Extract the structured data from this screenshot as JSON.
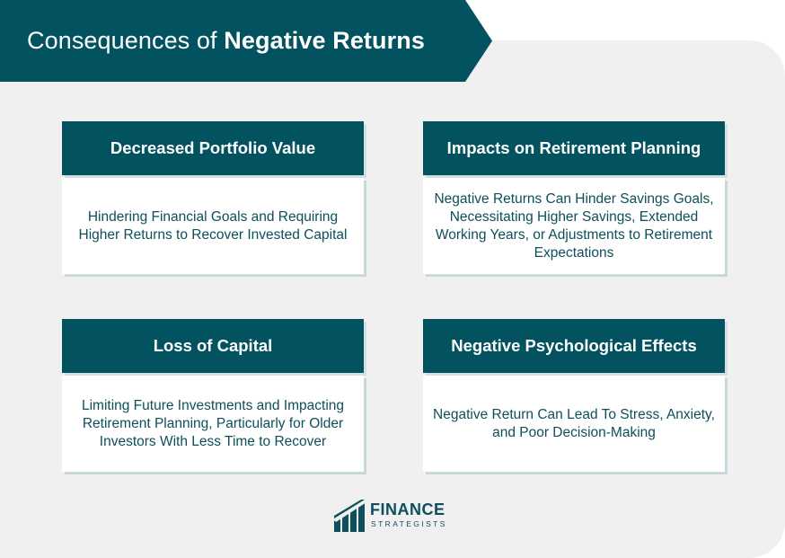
{
  "title": {
    "light": "Consequences of",
    "bold": "Negative Returns"
  },
  "cards": [
    {
      "heading": "Decreased Portfolio Value",
      "body": "Hindering Financial Goals and Requiring Higher Returns to Recover Invested Capital"
    },
    {
      "heading": "Impacts on Retirement Planning",
      "body": "Negative Returns Can Hinder Savings Goals, Necessitating Higher Savings, Extended Working Years, or Adjustments to Retirement Expectations"
    },
    {
      "heading": "Loss of Capital",
      "body": "Limiting Future Investments and Impacting Retirement Planning, Particularly for Older Investors With Less Time to Recover"
    },
    {
      "heading": "Negative Psychological Effects",
      "body": "Negative Return Can Lead To Stress, Anxiety, and Poor Decision-Making"
    }
  ],
  "logo": {
    "line1": "FINANCE",
    "line2": "STRATEGISTS"
  },
  "colors": {
    "primary": "#02525f",
    "text": "#0d4f5a",
    "panel": "#f0f0f0"
  }
}
